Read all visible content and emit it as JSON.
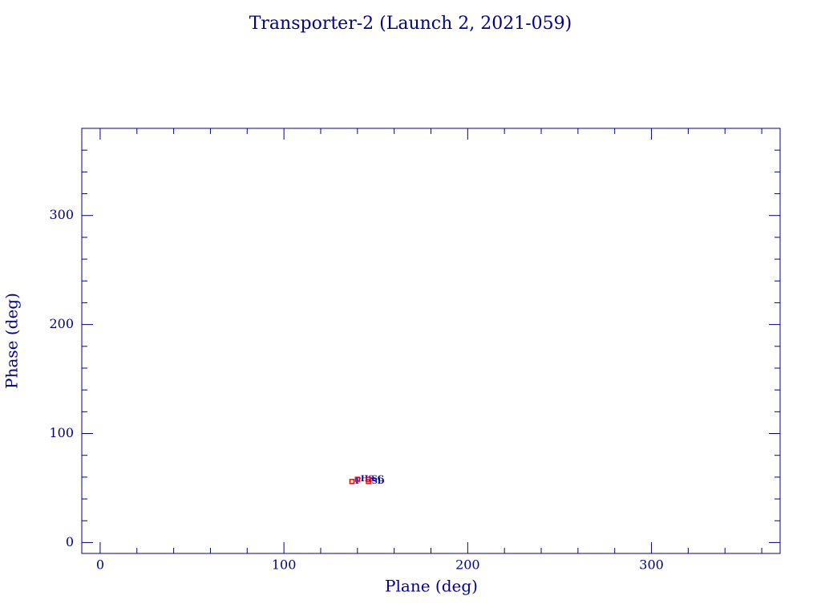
{
  "chart_data": {
    "type": "scatter",
    "title": "Transporter-2 (Launch 2, 2021-059)",
    "x_label": "Plane (deg)",
    "y_label": "Phase (deg)",
    "x": [
      137,
      140,
      146,
      146
    ],
    "values": [
      56,
      58,
      58,
      56
    ],
    "point_labels": [
      "F",
      "HS",
      "SC",
      "SD"
    ],
    "marker_color": "#ff0000",
    "label_color": "#0000cc",
    "axis_color": "#00008b",
    "xlim": [
      -10,
      370
    ],
    "ylim": [
      -10,
      380
    ],
    "xticks": [
      0,
      100,
      200,
      300
    ],
    "yticks": [
      0,
      100,
      200,
      300
    ],
    "xminorticks": [
      20,
      40,
      60,
      80,
      120,
      140,
      160,
      180,
      220,
      240,
      260,
      280,
      320,
      340,
      360
    ],
    "yminorticks": [
      20,
      40,
      60,
      80,
      120,
      140,
      160,
      180,
      220,
      240,
      260,
      280,
      320,
      340,
      360
    ]
  }
}
